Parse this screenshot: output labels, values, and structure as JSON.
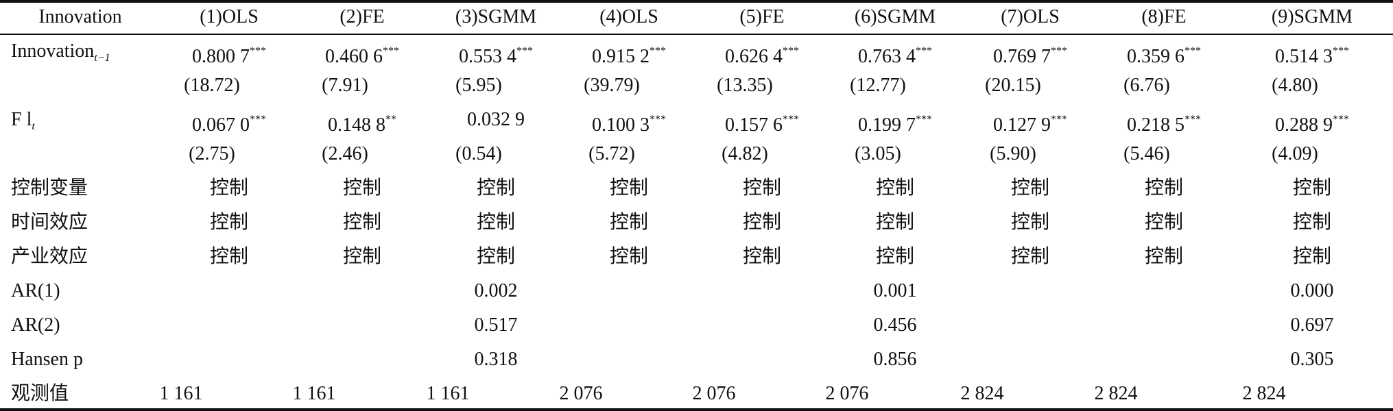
{
  "header": [
    "Innovation",
    "(1)OLS",
    "(2)FE",
    "(3)SGMM",
    "(4)OLS",
    "(5)FE",
    "(6)SGMM",
    "(7)OLS",
    "(8)FE",
    "(9)SGMM"
  ],
  "rows": [
    {
      "label": {
        "text": "Innovation",
        "sub": "t−1"
      },
      "cells": [
        {
          "value": "0.800 7",
          "sig": "***"
        },
        {
          "value": "0.460 6",
          "sig": "***"
        },
        {
          "value": "0.553 4",
          "sig": "***"
        },
        {
          "value": "0.915 2",
          "sig": "***"
        },
        {
          "value": "0.626 4",
          "sig": "***"
        },
        {
          "value": "0.763 4",
          "sig": "***"
        },
        {
          "value": "0.769 7",
          "sig": "***"
        },
        {
          "value": "0.359 6",
          "sig": "***"
        },
        {
          "value": "0.514 3",
          "sig": "***"
        }
      ]
    },
    {
      "label": null,
      "cells": [
        "(18.72)",
        "(7.91)",
        "(5.95)",
        "(39.79)",
        "(13.35)",
        "(12.77)",
        "(20.15)",
        "(6.76)",
        "(4.80)"
      ]
    },
    {
      "label": {
        "text": "F l",
        "sub": "t"
      },
      "cells": [
        {
          "value": "0.067 0",
          "sig": "***"
        },
        {
          "value": "0.148 8",
          "sig": "**"
        },
        {
          "value": "0.032 9",
          "sig": null
        },
        {
          "value": "0.100 3",
          "sig": "***"
        },
        {
          "value": "0.157 6",
          "sig": "***"
        },
        {
          "value": "0.199 7",
          "sig": "***"
        },
        {
          "value": "0.127 9",
          "sig": "***"
        },
        {
          "value": "0.218 5",
          "sig": "***"
        },
        {
          "value": "0.288 9",
          "sig": "***"
        }
      ]
    },
    {
      "label": null,
      "cells": [
        "(2.75)",
        "(2.46)",
        "(0.54)",
        "(5.72)",
        "(4.82)",
        "(3.05)",
        "(5.90)",
        "(5.46)",
        "(4.09)"
      ]
    },
    {
      "label": "控制变量",
      "cells": [
        "控制",
        "控制",
        "控制",
        "控制",
        "控制",
        "控制",
        "控制",
        "控制",
        "控制"
      ]
    },
    {
      "label": "时间效应",
      "cells": [
        "控制",
        "控制",
        "控制",
        "控制",
        "控制",
        "控制",
        "控制",
        "控制",
        "控制"
      ]
    },
    {
      "label": "产业效应",
      "cells": [
        "控制",
        "控制",
        "控制",
        "控制",
        "控制",
        "控制",
        "控制",
        "控制",
        "控制"
      ]
    },
    {
      "label": "AR(1)",
      "cells": [
        null,
        null,
        "0.002",
        null,
        null,
        "0.001",
        null,
        null,
        "0.000"
      ]
    },
    {
      "label": "AR(2)",
      "cells": [
        null,
        null,
        "0.517",
        null,
        null,
        "0.456",
        null,
        null,
        "0.697"
      ]
    },
    {
      "label": "Hansen p",
      "cells": [
        null,
        null,
        "0.318",
        null,
        null,
        "0.856",
        null,
        null,
        "0.305"
      ]
    },
    {
      "label": "观测值",
      "cells": [
        "1 161",
        "1 161",
        "1 161",
        "2 076",
        "2 076",
        "2 076",
        "2 824",
        "2 824",
        "2 824"
      ]
    }
  ]
}
